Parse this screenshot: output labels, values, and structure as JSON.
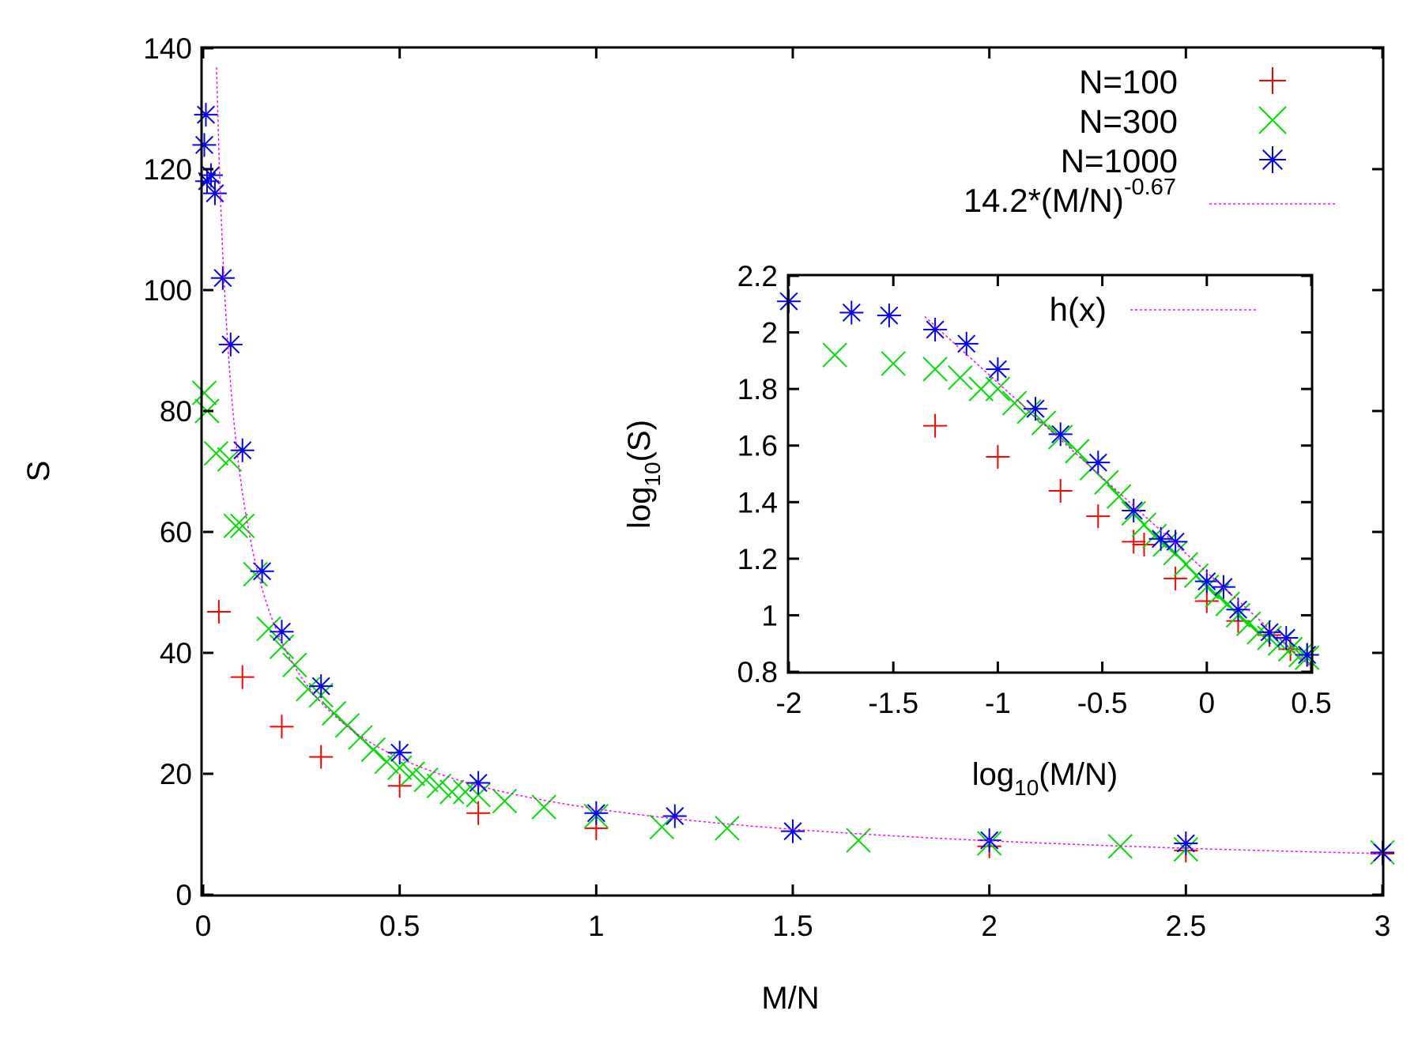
{
  "chart_data": [
    {
      "type": "scatter",
      "title": "",
      "xlabel": "M/N",
      "ylabel": "S",
      "xlim": [
        0,
        3
      ],
      "ylim": [
        0,
        140
      ],
      "xticks": [
        "0",
        "0.5",
        "1",
        "1.5",
        "2",
        "2.5",
        "3"
      ],
      "yticks": [
        "0",
        "20",
        "40",
        "60",
        "80",
        "100",
        "120",
        "140"
      ],
      "xtick_values": [
        0,
        0.5,
        1,
        1.5,
        2,
        2.5,
        3
      ],
      "ytick_values": [
        0,
        20,
        40,
        60,
        80,
        100,
        120,
        140
      ],
      "grid": false,
      "legend": "top-right",
      "series": [
        {
          "name": "N=100",
          "marker": "plus",
          "color": "#ff0000",
          "x": [
            0.04,
            0.1,
            0.2,
            0.3,
            0.5,
            0.7,
            1.0,
            2.0,
            2.5,
            3.0
          ],
          "y": [
            46.8,
            36.0,
            27.8,
            22.8,
            18.0,
            13.5,
            11.0,
            8.0,
            7.3,
            6.8
          ]
        },
        {
          "name": "N=300",
          "marker": "cross",
          "color": "#00dd00",
          "x": [
            0.003,
            0.01,
            0.033,
            0.067,
            0.083,
            0.1,
            0.133,
            0.167,
            0.2,
            0.233,
            0.267,
            0.3,
            0.333,
            0.367,
            0.4,
            0.433,
            0.467,
            0.5,
            0.533,
            0.567,
            0.6,
            0.633,
            0.667,
            0.7,
            0.767,
            0.867,
            1.0,
            1.167,
            1.333,
            1.667,
            2.0,
            2.333,
            2.5,
            3.0
          ],
          "y": [
            83.0,
            80.0,
            73.0,
            72.0,
            61.0,
            61.0,
            53.0,
            44.0,
            41.0,
            38.0,
            34.0,
            33.0,
            30.0,
            28.0,
            26.0,
            24.0,
            22.0,
            21.0,
            20.0,
            19.0,
            18.0,
            17.0,
            17.0,
            16.5,
            15.5,
            14.5,
            13.0,
            11.2,
            11.0,
            9.0,
            8.5,
            8.0,
            7.5,
            7.0
          ]
        },
        {
          "name": "N=1000",
          "marker": "star",
          "color": "#0000ff",
          "x": [
            0.003,
            0.007,
            0.01,
            0.02,
            0.03,
            0.05,
            0.07,
            0.1,
            0.15,
            0.2,
            0.3,
            0.5,
            0.7,
            1.0,
            1.2,
            1.5,
            2.0,
            2.5,
            3.0
          ],
          "y": [
            124.0,
            129.0,
            118.0,
            119.0,
            116.0,
            102.0,
            91.0,
            73.5,
            53.5,
            43.5,
            34.5,
            23.5,
            18.5,
            13.5,
            13.0,
            10.5,
            9.0,
            8.5,
            7.0
          ]
        },
        {
          "name": "14.2*(M/N)^-0.67",
          "name_base": "14.2*(M/N)",
          "name_exponent": "-0.67",
          "type": "line",
          "style": "dotted",
          "color": "#ff00ff",
          "formula": {
            "a": 14.2,
            "b": -0.67
          },
          "x_range": [
            0.034,
            3.0
          ]
        }
      ]
    },
    {
      "type": "scatter",
      "title": "",
      "xlabel": "log10(M/N)",
      "xlabel_base": "log",
      "xlabel_sub": "10",
      "xlabel_rest": "(M/N)",
      "ylabel": "log10(S)",
      "ylabel_base": "log",
      "ylabel_sub": "10",
      "ylabel_rest": "(S)",
      "xlim": [
        -2,
        0.5
      ],
      "ylim": [
        0.8,
        2.2
      ],
      "xticks": [
        "-2",
        "-1.5",
        "-1",
        "-0.5",
        "0",
        "0.5"
      ],
      "yticks": [
        "0.8",
        "1",
        "1.2",
        "1.4",
        "1.6",
        "1.8",
        "2",
        "2.2"
      ],
      "xtick_values": [
        -2,
        -1.5,
        -1,
        -0.5,
        0,
        0.5
      ],
      "ytick_values": [
        0.8,
        1.0,
        1.2,
        1.4,
        1.6,
        1.8,
        2.0,
        2.2
      ],
      "grid": false,
      "legend": "top-right",
      "series": [
        {
          "name": "",
          "marker": "plus",
          "color": "#ff0000",
          "x": [
            -1.3,
            -1.0,
            -0.7,
            -0.52,
            -0.35,
            -0.3,
            -0.15,
            0.0,
            0.15,
            0.3,
            0.4,
            0.48
          ],
          "y": [
            1.67,
            1.56,
            1.44,
            1.35,
            1.26,
            1.25,
            1.13,
            1.05,
            0.98,
            0.93,
            0.88,
            0.86
          ]
        },
        {
          "name": "",
          "marker": "cross",
          "color": "#00dd00",
          "x": [
            -1.78,
            -1.5,
            -1.3,
            -1.18,
            -1.08,
            -1.0,
            -0.92,
            -0.85,
            -0.78,
            -0.7,
            -0.62,
            -0.55,
            -0.48,
            -0.42,
            -0.35,
            -0.3,
            -0.25,
            -0.2,
            -0.15,
            -0.1,
            -0.05,
            0.0,
            0.05,
            0.1,
            0.15,
            0.2,
            0.25,
            0.3,
            0.35,
            0.4,
            0.45,
            0.48
          ],
          "y": [
            1.92,
            1.89,
            1.87,
            1.84,
            1.8,
            1.8,
            1.75,
            1.72,
            1.68,
            1.63,
            1.58,
            1.52,
            1.47,
            1.42,
            1.36,
            1.32,
            1.28,
            1.25,
            1.22,
            1.18,
            1.14,
            1.1,
            1.07,
            1.04,
            1.0,
            0.97,
            0.94,
            0.92,
            0.9,
            0.88,
            0.86,
            0.85
          ]
        },
        {
          "name": "",
          "marker": "star",
          "color": "#0000ff",
          "x": [
            -2.0,
            -1.7,
            -1.52,
            -1.3,
            -1.15,
            -1.0,
            -0.82,
            -0.7,
            -0.52,
            -0.35,
            -0.22,
            -0.15,
            0.0,
            0.08,
            0.15,
            0.3,
            0.38,
            0.48
          ],
          "y": [
            2.11,
            2.07,
            2.06,
            2.01,
            1.96,
            1.87,
            1.73,
            1.64,
            1.54,
            1.37,
            1.27,
            1.26,
            1.12,
            1.1,
            1.02,
            0.94,
            0.92,
            0.86
          ]
        },
        {
          "name": "h(x)",
          "type": "line",
          "style": "dotted",
          "color": "#ff00ff",
          "formula": {
            "a": 1.152,
            "b": -0.67,
            "form": "a + b*x"
          },
          "x_range": [
            -1.35,
            0.5
          ]
        }
      ]
    }
  ]
}
